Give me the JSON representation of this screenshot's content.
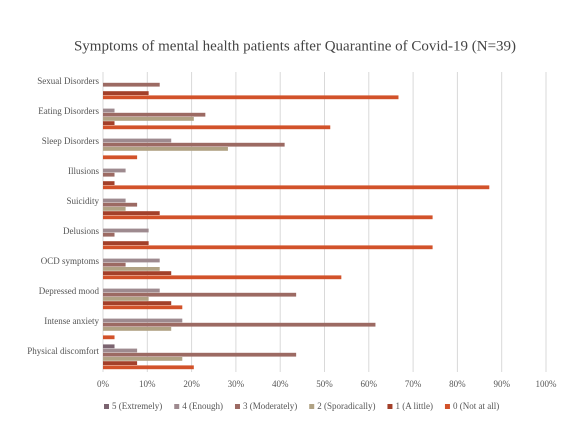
{
  "chart_data": {
    "type": "bar",
    "orientation": "horizontal",
    "title": "Symptoms of mental health patients after Quarantine of Covid-19 (N=39)",
    "categories": [
      "Sexual Disorders",
      "Eating Disorders",
      "Sleep Disorders",
      "Illusions",
      "Suicidity",
      "Delusions",
      "OCD symptoms",
      "Depressed mood",
      "Intense anxiety",
      "Physical discomfort"
    ],
    "series": [
      {
        "name": "5 (Extremely)",
        "color": "#7b6470",
        "values": [
          0,
          0,
          0,
          0,
          0,
          0,
          0,
          0,
          0,
          2.6
        ]
      },
      {
        "name": "4 (Enough)",
        "color": "#9e8a8f",
        "values": [
          0,
          2.6,
          15.4,
          5.1,
          5.1,
          10.3,
          12.8,
          12.8,
          17.9,
          7.7
        ]
      },
      {
        "name": "3 (Moderately)",
        "color": "#9c6a63",
        "values": [
          12.8,
          23.1,
          41.0,
          2.6,
          7.7,
          2.6,
          5.1,
          43.6,
          61.5,
          43.6
        ]
      },
      {
        "name": "2 (Sporadically)",
        "color": "#b0a284",
        "values": [
          0,
          20.5,
          28.2,
          0,
          5.1,
          0,
          12.8,
          10.3,
          15.4,
          17.9
        ]
      },
      {
        "name": "1 (A little)",
        "color": "#a3402a",
        "values": [
          10.3,
          2.6,
          0,
          2.6,
          12.8,
          10.3,
          15.4,
          15.4,
          0,
          7.7
        ]
      },
      {
        "name": "0 (Not at all)",
        "color": "#d2522a",
        "values": [
          66.7,
          51.3,
          7.7,
          87.2,
          74.4,
          74.4,
          53.8,
          17.9,
          2.6,
          20.5
        ]
      }
    ],
    "xlim": [
      0,
      100
    ],
    "xticks": [
      {
        "value": 0,
        "label": "0%"
      },
      {
        "value": 10,
        "label": "10%"
      },
      {
        "value": 20,
        "label": "20%"
      },
      {
        "value": 30,
        "label": "30%"
      },
      {
        "value": 40,
        "label": "40%"
      },
      {
        "value": 50,
        "label": "50%"
      },
      {
        "value": 60,
        "label": "60%"
      },
      {
        "value": 70,
        "label": "70%"
      },
      {
        "value": 80,
        "label": "80%"
      },
      {
        "value": 90,
        "label": "90%"
      },
      {
        "value": 100,
        "label": "100%"
      }
    ],
    "grid": true,
    "legend": "bottom"
  }
}
